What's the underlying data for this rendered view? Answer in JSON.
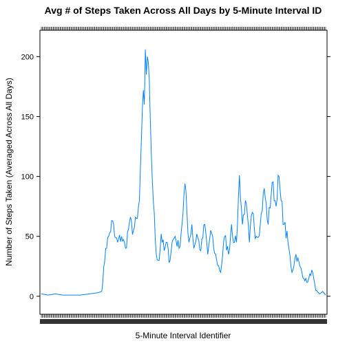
{
  "chart_data": {
    "type": "line",
    "title": "Avg # of Steps Taken Across All Days by 5-Minute Interval ID",
    "xlabel": "5-Minute Interval Identifier",
    "ylabel": "Number of Steps Taken (Averaged Across All Days)",
    "x_interval_count": 288,
    "ylim": [
      -15,
      222
    ],
    "y_ticks": [
      0,
      50,
      100,
      150,
      200
    ],
    "y_tick_labels": [
      "0",
      "50",
      "100",
      "150",
      "200"
    ],
    "grid": false,
    "legend": "none",
    "colors": {
      "line": "#0080ff",
      "axis": "#000000"
    },
    "series": [
      {
        "knots_x": [
          1,
          8,
          15,
          22,
          30,
          40,
          50,
          58,
          62,
          66,
          70,
          73,
          75,
          78,
          82,
          86,
          90,
          94,
          98,
          100,
          102,
          104,
          105,
          106,
          107,
          108,
          110,
          112,
          114,
          117,
          120,
          122,
          125,
          128,
          130,
          133,
          136,
          140,
          143,
          146,
          150,
          153,
          155,
          158,
          162,
          166,
          169,
          172,
          175,
          178,
          182,
          186,
          190,
          193,
          196,
          198,
          201,
          204,
          207,
          211,
          214,
          218,
          222,
          226,
          230,
          234,
          238,
          240,
          243,
          246,
          250,
          254,
          258,
          262,
          266,
          270,
          274,
          278,
          282,
          285,
          288
        ],
        "values": [
          2,
          1,
          2,
          1,
          1,
          1,
          2,
          3,
          4,
          40,
          53,
          63,
          50,
          45,
          50,
          40,
          62,
          55,
          65,
          80,
          130,
          172,
          160,
          206,
          185,
          200,
          180,
          120,
          80,
          35,
          30,
          52,
          38,
          45,
          28,
          45,
          50,
          40,
          60,
          94,
          45,
          60,
          40,
          52,
          38,
          60,
          35,
          55,
          40,
          30,
          20,
          50,
          35,
          60,
          45,
          45,
          101,
          60,
          80,
          45,
          70,
          50,
          60,
          90,
          60,
          95,
          75,
          101,
          80,
          60,
          45,
          20,
          35,
          25,
          15,
          12,
          22,
          5,
          2,
          4,
          1
        ]
      }
    ]
  }
}
